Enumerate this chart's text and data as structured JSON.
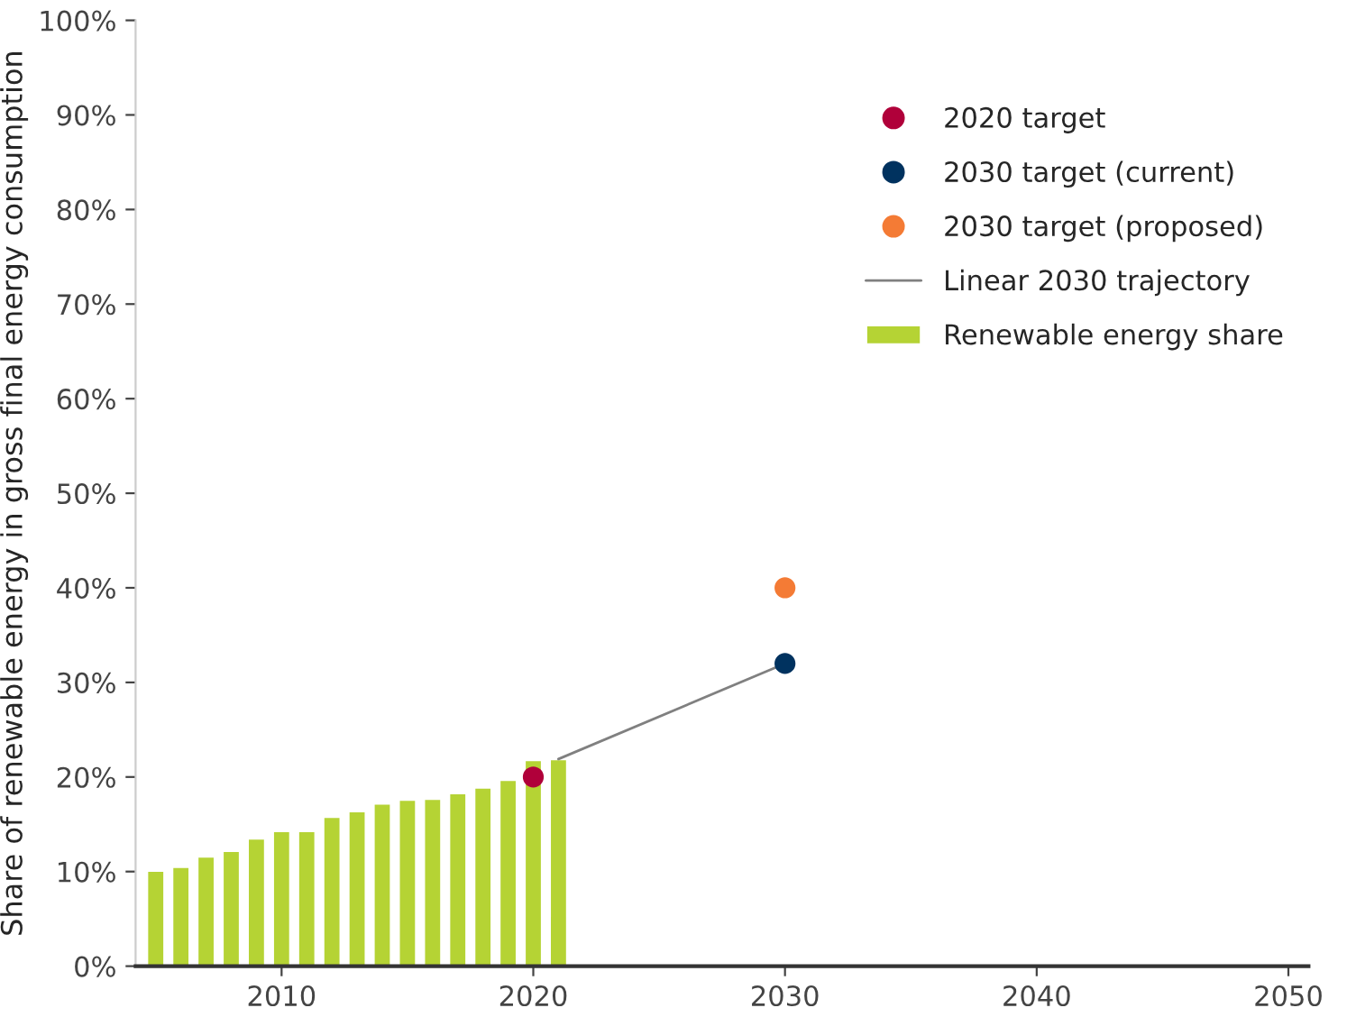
{
  "chart_data": {
    "type": "bar",
    "ylabel": "Share of renewable energy in gross final energy consumption",
    "series": [
      {
        "type": "scatter",
        "name": "2020 target",
        "color": "#b0003a",
        "x": [
          2020
        ],
        "values": [
          20
        ]
      },
      {
        "type": "scatter",
        "name": "2030 target (current)",
        "color": "#00325f",
        "x": [
          2030
        ],
        "values": [
          32
        ]
      },
      {
        "type": "scatter",
        "name": "2030 target (proposed)",
        "color": "#f47b35",
        "x": [
          2030
        ],
        "values": [
          40
        ]
      },
      {
        "type": "line",
        "name": "Linear 2030 trajectory",
        "color": "#808080",
        "x": [
          2021,
          2030
        ],
        "values": [
          21.9,
          32
        ]
      },
      {
        "name": "Renewable energy share",
        "color": "#b5d334",
        "x": [
          2005,
          2006,
          2007,
          2008,
          2009,
          2010,
          2011,
          2012,
          2013,
          2014,
          2015,
          2016,
          2017,
          2018,
          2019,
          2020,
          2021
        ],
        "values": [
          10.1,
          10.5,
          11.6,
          12.2,
          13.5,
          14.3,
          14.3,
          15.8,
          16.4,
          17.2,
          17.6,
          17.7,
          18.3,
          18.9,
          19.7,
          21.8,
          21.9
        ]
      }
    ],
    "xlim": [
      2004.2,
      2050.8
    ],
    "xticks": [
      2010,
      2020,
      2030,
      2040,
      2050
    ],
    "ylim": [
      0,
      100
    ],
    "yticks": [
      {
        "value": 0,
        "label": "0%"
      },
      {
        "value": 10,
        "label": "10%"
      },
      {
        "value": 20,
        "label": "20%"
      },
      {
        "value": 30,
        "label": "30%"
      },
      {
        "value": 40,
        "label": "40%"
      },
      {
        "value": 50,
        "label": "50%"
      },
      {
        "value": 60,
        "label": "60%"
      },
      {
        "value": 70,
        "label": "70%"
      },
      {
        "value": 80,
        "label": "80%"
      },
      {
        "value": 90,
        "label": "90%"
      },
      {
        "value": 100,
        "label": "100%"
      }
    ],
    "grid": false,
    "legend": "right"
  }
}
